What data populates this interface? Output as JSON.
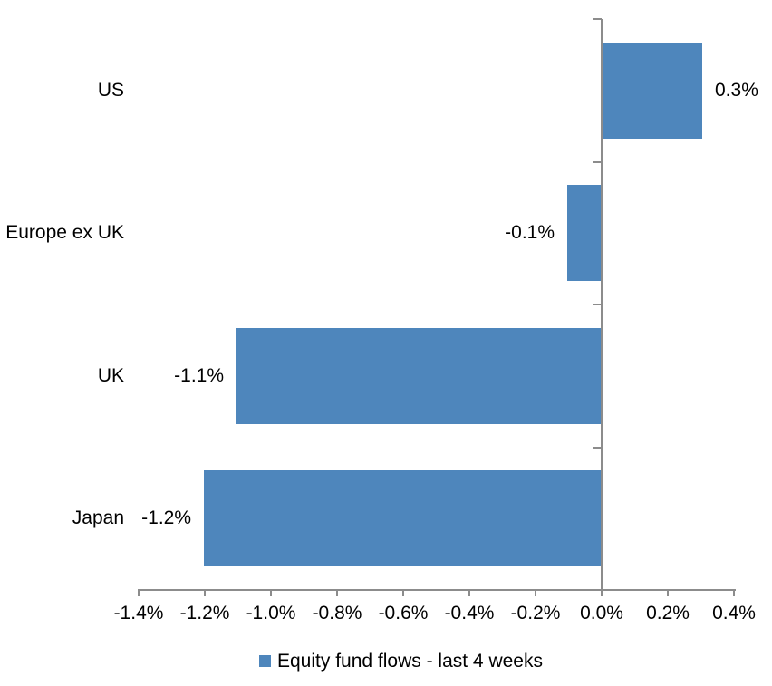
{
  "chart_data": {
    "type": "bar",
    "orientation": "horizontal",
    "title": "",
    "categories": [
      "US",
      "Europe ex UK",
      "UK",
      "Japan"
    ],
    "values": [
      0.3,
      -0.1,
      -1.1,
      -1.2
    ],
    "data_labels": [
      "0.3%",
      "-0.1%",
      "-1.1%",
      "-1.2%"
    ],
    "series_name": "Equity fund flows - last 4 weeks",
    "legend_label": "Equity fund flows - last 4 weeks",
    "legend_position": "bottom",
    "xlabel": "",
    "ylabel": "",
    "xlim": [
      -1.4,
      0.4
    ],
    "x_tick_step": 0.2,
    "x_tick_labels": [
      "-1.4%",
      "-1.2%",
      "-1.0%",
      "-0.8%",
      "-0.6%",
      "-0.4%",
      "-0.2%",
      "0.0%",
      "0.2%",
      "0.4%"
    ],
    "grid": false,
    "bar_color": "#4E86BC",
    "axis_color": "#8C8C8C",
    "text_color": "#000000",
    "background_color": "#FFFFFF"
  }
}
